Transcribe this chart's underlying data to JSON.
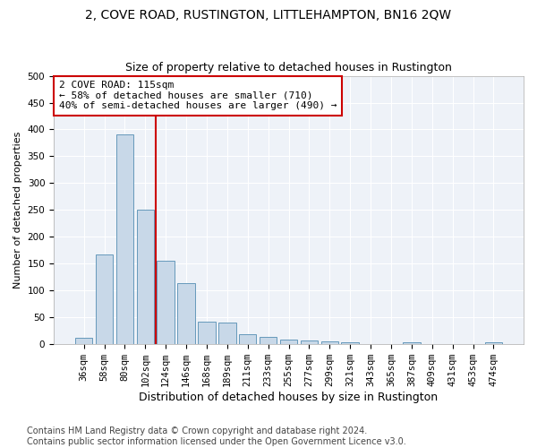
{
  "title": "2, COVE ROAD, RUSTINGTON, LITTLEHAMPTON, BN16 2QW",
  "subtitle": "Size of property relative to detached houses in Rustington",
  "xlabel": "Distribution of detached houses by size in Rustington",
  "ylabel": "Number of detached properties",
  "categories": [
    "36sqm",
    "58sqm",
    "80sqm",
    "102sqm",
    "124sqm",
    "146sqm",
    "168sqm",
    "189sqm",
    "211sqm",
    "233sqm",
    "255sqm",
    "277sqm",
    "299sqm",
    "321sqm",
    "343sqm",
    "365sqm",
    "387sqm",
    "409sqm",
    "431sqm",
    "453sqm",
    "474sqm"
  ],
  "values": [
    12,
    167,
    390,
    250,
    155,
    113,
    42,
    40,
    18,
    14,
    9,
    7,
    5,
    3,
    0,
    0,
    3,
    0,
    0,
    0,
    3
  ],
  "bar_color": "#c8d8e8",
  "bar_edge_color": "#6699bb",
  "vline_x_index": 3.5,
  "vline_color": "#cc0000",
  "annotation_text": "2 COVE ROAD: 115sqm\n← 58% of detached houses are smaller (710)\n40% of semi-detached houses are larger (490) →",
  "annotation_box_color": "white",
  "annotation_box_edge_color": "#cc0000",
  "ylim": [
    0,
    500
  ],
  "yticks": [
    0,
    50,
    100,
    150,
    200,
    250,
    300,
    350,
    400,
    450,
    500
  ],
  "footer": "Contains HM Land Registry data © Crown copyright and database right 2024.\nContains public sector information licensed under the Open Government Licence v3.0.",
  "background_color": "#ffffff",
  "plot_background_color": "#eef2f8",
  "title_fontsize": 10,
  "subtitle_fontsize": 9,
  "xlabel_fontsize": 9,
  "ylabel_fontsize": 8,
  "tick_fontsize": 7.5,
  "annotation_fontsize": 8,
  "footer_fontsize": 7
}
